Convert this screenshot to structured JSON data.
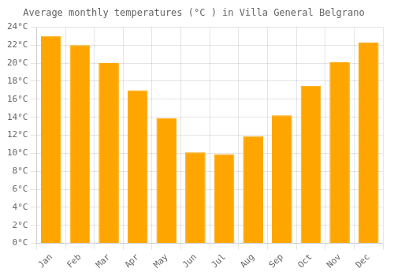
{
  "chart_data": {
    "type": "bar",
    "title": "Average monthly temperatures (°C ) in Villa General Belgrano",
    "categories": [
      "Jan",
      "Feb",
      "Mar",
      "Apr",
      "May",
      "Jun",
      "Jul",
      "Aug",
      "Sep",
      "Oct",
      "Nov",
      "Dec"
    ],
    "values": [
      23.0,
      22.0,
      20.0,
      17.0,
      13.9,
      10.1,
      9.9,
      11.9,
      14.2,
      17.5,
      20.1,
      22.3
    ],
    "color": "#FFA500",
    "ylim": [
      0,
      24
    ],
    "yticks": [
      {
        "value": 0,
        "label": "0°C"
      },
      {
        "value": 2,
        "label": "2°C"
      },
      {
        "value": 4,
        "label": "4°C"
      },
      {
        "value": 6,
        "label": "6°C"
      },
      {
        "value": 8,
        "label": "8°C"
      },
      {
        "value": 10,
        "label": "10°C"
      },
      {
        "value": 12,
        "label": "12°C"
      },
      {
        "value": 14,
        "label": "14°C"
      },
      {
        "value": 16,
        "label": "16°C"
      },
      {
        "value": 18,
        "label": "18°C"
      },
      {
        "value": 20,
        "label": "20°C"
      },
      {
        "value": 22,
        "label": "22°C"
      },
      {
        "value": 24,
        "label": "24°C"
      }
    ],
    "grid": true
  }
}
